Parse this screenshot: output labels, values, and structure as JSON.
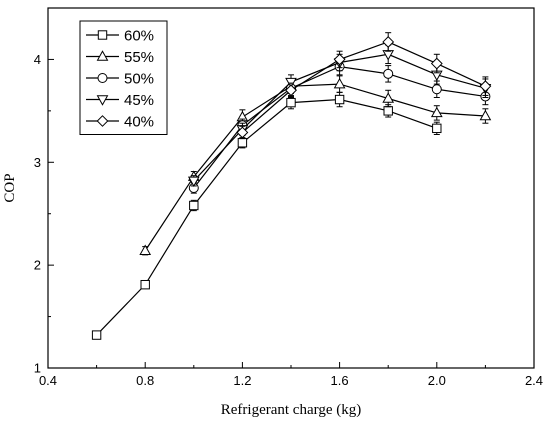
{
  "chart_data": {
    "type": "line",
    "title": "",
    "xlabel": "Refrigerant charge (kg)",
    "ylabel": "COP",
    "xlim": [
      0.4,
      2.4
    ],
    "ylim": [
      1,
      4.5
    ],
    "xticks": [
      "0.4",
      "0.8",
      "1.2",
      "1.6",
      "2.0",
      "2.4"
    ],
    "yticks": [
      "1",
      "2",
      "3",
      "4"
    ],
    "grid": false,
    "legend_position": "top-left",
    "error_bars": true,
    "series": [
      {
        "name": "60%",
        "marker": "square",
        "x": [
          0.6,
          0.8,
          1.0,
          1.2,
          1.4,
          1.6,
          1.8,
          2.0
        ],
        "y": [
          1.32,
          1.81,
          2.58,
          3.19,
          3.58,
          3.61,
          3.5,
          3.33
        ],
        "err": [
          0.02,
          0.03,
          0.05,
          0.05,
          0.06,
          0.07,
          0.06,
          0.06
        ]
      },
      {
        "name": "55%",
        "marker": "triangle-up",
        "x": [
          0.8,
          1.0,
          1.2,
          1.4,
          1.6,
          1.8,
          2.0,
          2.2
        ],
        "y": [
          2.14,
          2.86,
          3.44,
          3.74,
          3.76,
          3.62,
          3.48,
          3.45
        ],
        "err": [
          0.04,
          0.05,
          0.07,
          0.07,
          0.08,
          0.08,
          0.07,
          0.07
        ]
      },
      {
        "name": "50%",
        "marker": "circle",
        "x": [
          1.0,
          1.2,
          1.4,
          1.6,
          1.8,
          2.0,
          2.2
        ],
        "y": [
          2.75,
          3.36,
          3.72,
          3.93,
          3.86,
          3.71,
          3.64
        ],
        "err": [
          0.05,
          0.06,
          0.07,
          0.08,
          0.08,
          0.08,
          0.08
        ]
      },
      {
        "name": "45%",
        "marker": "triangle-down",
        "x": [
          1.0,
          1.2,
          1.4,
          1.6,
          1.8,
          2.0,
          2.2
        ],
        "y": [
          2.82,
          3.32,
          3.78,
          3.97,
          4.05,
          3.85,
          3.72
        ],
        "err": [
          0.05,
          0.06,
          0.07,
          0.08,
          0.09,
          0.09,
          0.09
        ]
      },
      {
        "name": "40%",
        "marker": "diamond",
        "x": [
          1.2,
          1.4,
          1.6,
          1.8,
          2.0,
          2.2
        ],
        "y": [
          3.29,
          3.7,
          4.0,
          4.17,
          3.96,
          3.74
        ],
        "err": [
          0.06,
          0.07,
          0.08,
          0.09,
          0.09,
          0.09
        ]
      }
    ]
  }
}
